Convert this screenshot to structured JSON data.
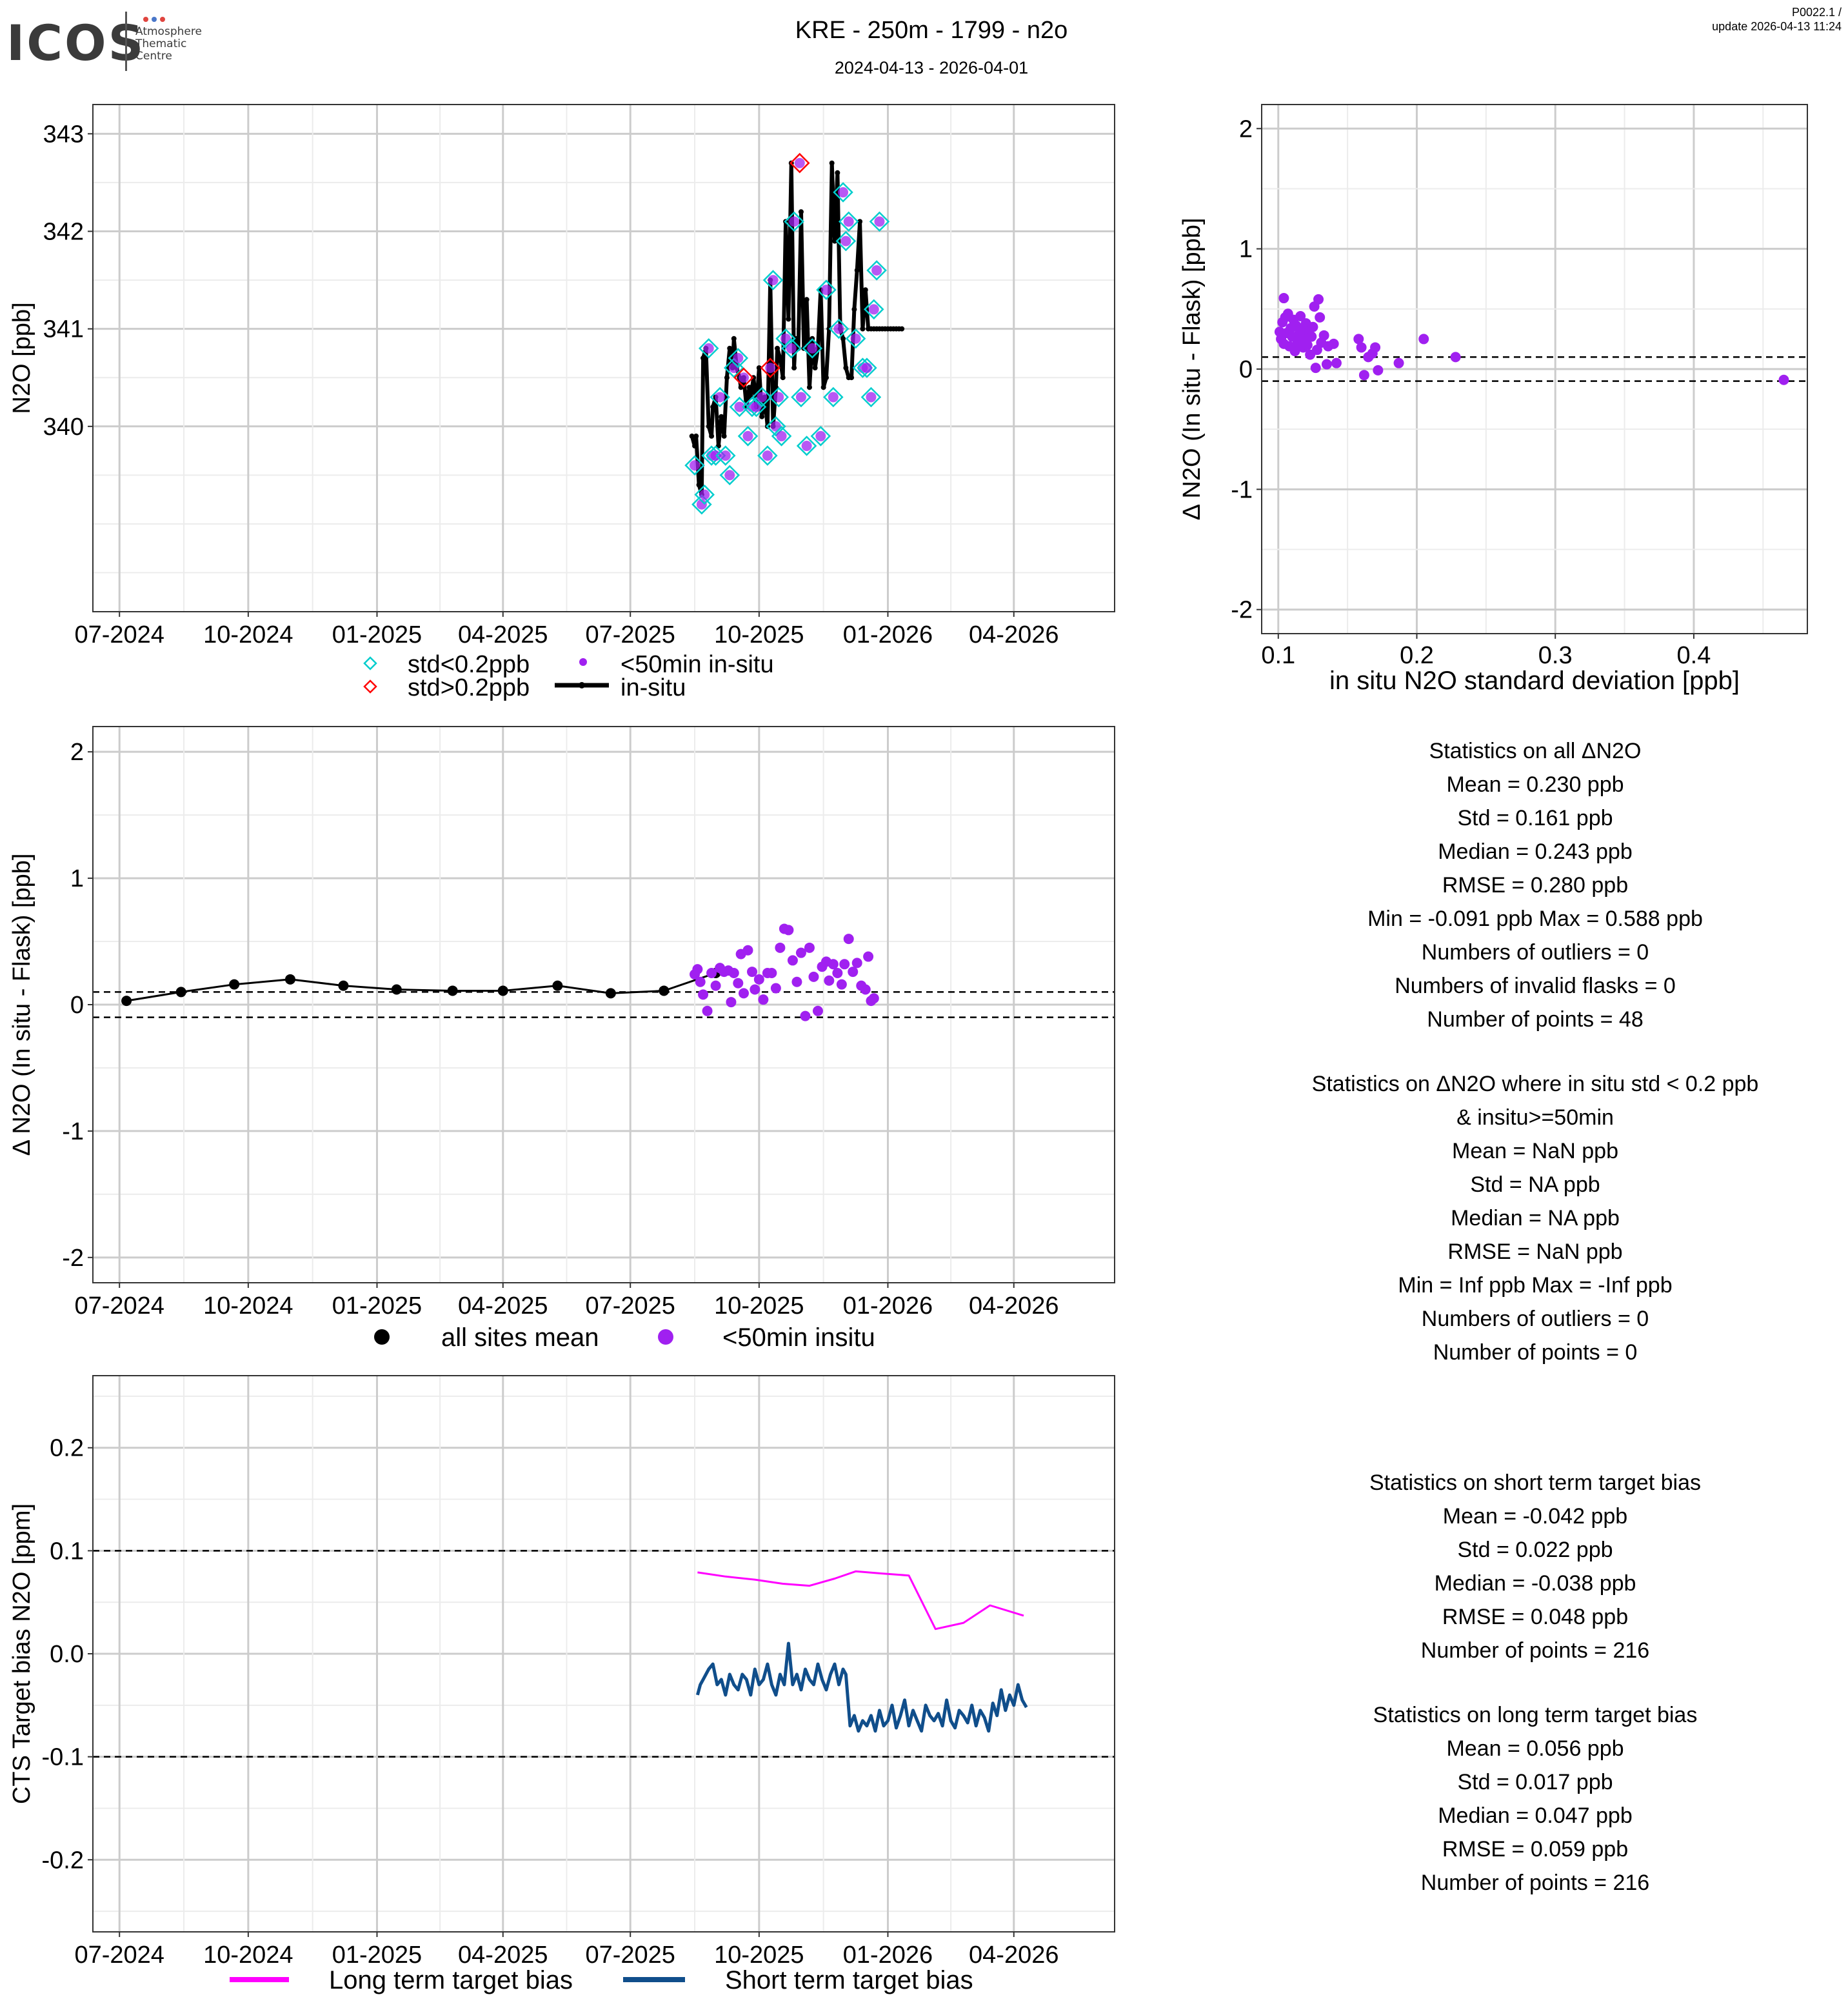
{
  "header": {
    "title": "KRE - 250m - 1799 - n2o",
    "subtitle": "2024-04-13 - 2026-04-01",
    "version": "P0022.1 /",
    "update": "update  2026-04-13 11:24",
    "logo_text": "ICOS",
    "logo_sub": [
      "Atmosphere",
      "Thematic",
      "Centre"
    ]
  },
  "colors": {
    "purple": "#a020f0",
    "cyan": "#00cdcd",
    "red": "#ff0000",
    "magenta": "#ff00ff",
    "navy": "#104e8b",
    "grid_major": "#cccccc",
    "grid_minor": "#ececec"
  },
  "chart_data": [
    {
      "id": "timeseries",
      "type": "line",
      "ylabel": "N2O [ppb]",
      "ylim": [
        338.1,
        343.3
      ],
      "yticks": [
        340,
        341,
        342,
        343
      ],
      "xlim": [
        60,
        790
      ],
      "xticks": [
        {
          "label": "07-2024",
          "x": 79
        },
        {
          "label": "10-2024",
          "x": 171
        },
        {
          "label": "01-2025",
          "x": 263
        },
        {
          "label": "04-2025",
          "x": 353
        },
        {
          "label": "07-2025",
          "x": 444
        },
        {
          "label": "10-2025",
          "x": 536
        },
        {
          "label": "01-2026",
          "x": 628
        },
        {
          "label": "04-2026",
          "x": 718
        }
      ],
      "insitu_line": {
        "x": [
          488,
          490,
          491,
          493,
          495,
          496,
          498,
          500,
          502,
          503,
          505,
          507,
          509,
          511,
          513,
          515,
          517,
          518,
          520,
          522,
          523,
          525,
          527,
          529,
          530,
          532,
          534,
          536,
          538,
          540,
          542,
          544,
          546,
          548,
          549,
          551,
          553,
          555,
          557,
          559,
          561,
          562,
          564,
          566,
          568,
          570,
          572,
          574,
          576,
          578,
          580,
          582,
          584,
          586,
          588,
          590,
          592,
          594,
          596,
          598,
          600,
          602,
          604,
          606,
          608,
          610,
          612,
          614,
          616,
          618,
          620,
          622,
          624,
          626,
          628,
          630,
          632,
          634,
          636,
          638
        ],
        "y": [
          339.9,
          339.8,
          339.9,
          339.4,
          339.3,
          340.7,
          340.8,
          340.0,
          339.9,
          340.2,
          340.3,
          339.8,
          340.1,
          339.9,
          340.5,
          340.8,
          340.6,
          340.9,
          340.6,
          340.5,
          340.4,
          340.5,
          340.2,
          340.4,
          340.3,
          340.5,
          340.2,
          340.6,
          340.1,
          340.3,
          340.0,
          341.5,
          340.0,
          340.4,
          340.8,
          340.7,
          340.5,
          342.1,
          341.1,
          342.7,
          340.6,
          340.9,
          340.8,
          342.2,
          340.8,
          341.3,
          340.4,
          340.9,
          340.6,
          340.8,
          341.4,
          340.4,
          340.5,
          341.0,
          342.7,
          341.9,
          342.6,
          341.0,
          340.9,
          340.6,
          340.5,
          340.5,
          341.2,
          341.6,
          342.1,
          341.0,
          341.4,
          341.0,
          341.0,
          341.0,
          341.0,
          341.0,
          341.0,
          341.0,
          341.0,
          341.0,
          341.0,
          341.0,
          341.0,
          341.0
        ]
      },
      "flask_points": [
        {
          "x": 490,
          "y": 339.6,
          "flag": "ok"
        },
        {
          "x": 495,
          "y": 339.2,
          "flag": "ok"
        },
        {
          "x": 497,
          "y": 339.3,
          "flag": "ok"
        },
        {
          "x": 500,
          "y": 340.8,
          "flag": "ok"
        },
        {
          "x": 502,
          "y": 339.7,
          "flag": "ok"
        },
        {
          "x": 505,
          "y": 339.7,
          "flag": "ok"
        },
        {
          "x": 508,
          "y": 340.3,
          "flag": "ok"
        },
        {
          "x": 512,
          "y": 339.7,
          "flag": "ok"
        },
        {
          "x": 515,
          "y": 339.5,
          "flag": "ok"
        },
        {
          "x": 518,
          "y": 340.6,
          "flag": "ok"
        },
        {
          "x": 521,
          "y": 340.7,
          "flag": "ok"
        },
        {
          "x": 522,
          "y": 340.2,
          "flag": "ok"
        },
        {
          "x": 525,
          "y": 340.5,
          "flag": "high"
        },
        {
          "x": 528,
          "y": 339.9,
          "flag": "ok"
        },
        {
          "x": 531,
          "y": 340.2,
          "flag": "ok"
        },
        {
          "x": 534,
          "y": 340.2,
          "flag": "ok"
        },
        {
          "x": 538,
          "y": 340.3,
          "flag": "ok"
        },
        {
          "x": 542,
          "y": 339.7,
          "flag": "ok"
        },
        {
          "x": 544,
          "y": 340.6,
          "flag": "high"
        },
        {
          "x": 546,
          "y": 341.5,
          "flag": "ok"
        },
        {
          "x": 548,
          "y": 340.0,
          "flag": "ok"
        },
        {
          "x": 550,
          "y": 340.3,
          "flag": "ok"
        },
        {
          "x": 552,
          "y": 339.9,
          "flag": "ok"
        },
        {
          "x": 555,
          "y": 340.9,
          "flag": "ok"
        },
        {
          "x": 559,
          "y": 340.8,
          "flag": "ok"
        },
        {
          "x": 561,
          "y": 342.1,
          "flag": "ok"
        },
        {
          "x": 565,
          "y": 342.7,
          "flag": "high"
        },
        {
          "x": 566,
          "y": 340.3,
          "flag": "ok"
        },
        {
          "x": 570,
          "y": 339.8,
          "flag": "ok"
        },
        {
          "x": 574,
          "y": 340.8,
          "flag": "ok"
        },
        {
          "x": 580,
          "y": 339.9,
          "flag": "ok"
        },
        {
          "x": 584,
          "y": 341.4,
          "flag": "ok"
        },
        {
          "x": 589,
          "y": 340.3,
          "flag": "ok"
        },
        {
          "x": 593,
          "y": 341.0,
          "flag": "ok"
        },
        {
          "x": 596,
          "y": 342.4,
          "flag": "ok"
        },
        {
          "x": 598,
          "y": 341.9,
          "flag": "ok"
        },
        {
          "x": 600,
          "y": 342.1,
          "flag": "ok"
        },
        {
          "x": 605,
          "y": 340.9,
          "flag": "ok"
        },
        {
          "x": 610,
          "y": 340.6,
          "flag": "ok"
        },
        {
          "x": 613,
          "y": 340.6,
          "flag": "ok"
        },
        {
          "x": 616,
          "y": 340.3,
          "flag": "ok"
        },
        {
          "x": 618,
          "y": 341.2,
          "flag": "ok"
        },
        {
          "x": 620,
          "y": 341.6,
          "flag": "ok"
        },
        {
          "x": 622,
          "y": 342.1,
          "flag": "ok"
        }
      ],
      "legend": {
        "ok": "std<0.2ppb",
        "high": "std>0.2ppb",
        "short": "<50min in-situ",
        "line": "in-situ"
      }
    },
    {
      "id": "scatter_std",
      "type": "scatter",
      "ylabel": "Δ N2O (In situ - Flask) [ppb]",
      "xlabel": "in situ N2O standard deviation [ppb]",
      "xlim": [
        0.088,
        0.482
      ],
      "ylim": [
        -2.2,
        2.2
      ],
      "xticks": [
        0.1,
        0.2,
        0.3,
        0.4
      ],
      "yticks": [
        -2,
        -1,
        0,
        1,
        2
      ],
      "hlines": [
        0.1,
        -0.1
      ],
      "points": [
        [
          0.101,
          0.31
        ],
        [
          0.102,
          0.25
        ],
        [
          0.103,
          0.39
        ],
        [
          0.104,
          0.21
        ],
        [
          0.105,
          0.43
        ],
        [
          0.106,
          0.3
        ],
        [
          0.107,
          0.46
        ],
        [
          0.108,
          0.19
        ],
        [
          0.109,
          0.34
        ],
        [
          0.11,
          0.27
        ],
        [
          0.111,
          0.41
        ],
        [
          0.112,
          0.15
        ],
        [
          0.113,
          0.36
        ],
        [
          0.114,
          0.22
        ],
        [
          0.115,
          0.29
        ],
        [
          0.116,
          0.44
        ],
        [
          0.117,
          0.33
        ],
        [
          0.118,
          0.18
        ],
        [
          0.119,
          0.26
        ],
        [
          0.12,
          0.38
        ],
        [
          0.121,
          0.2
        ],
        [
          0.122,
          0.31
        ],
        [
          0.123,
          0.12
        ],
        [
          0.124,
          0.27
        ],
        [
          0.125,
          0.35
        ],
        [
          0.126,
          0.52
        ],
        [
          0.127,
          0.01
        ],
        [
          0.128,
          0.16
        ],
        [
          0.129,
          0.58
        ],
        [
          0.13,
          0.43
        ],
        [
          0.131,
          0.22
        ],
        [
          0.133,
          0.28
        ],
        [
          0.135,
          0.04
        ],
        [
          0.136,
          0.19
        ],
        [
          0.14,
          0.21
        ],
        [
          0.142,
          0.05
        ],
        [
          0.158,
          0.25
        ],
        [
          0.16,
          0.18
        ],
        [
          0.162,
          -0.05
        ],
        [
          0.165,
          0.1
        ],
        [
          0.168,
          0.13
        ],
        [
          0.17,
          0.18
        ],
        [
          0.172,
          -0.01
        ],
        [
          0.187,
          0.05
        ],
        [
          0.205,
          0.25
        ],
        [
          0.228,
          0.1
        ],
        [
          0.465,
          -0.09
        ],
        [
          0.104,
          0.59
        ]
      ]
    },
    {
      "id": "delta_timeseries",
      "type": "scatter",
      "ylabel": "Δ N2O (In situ - Flask) [ppb]",
      "ylim": [
        -2.2,
        2.2
      ],
      "yticks": [
        -2,
        -1,
        0,
        1,
        2
      ],
      "xlim": [
        60,
        790
      ],
      "hlines": [
        0.1,
        -0.1
      ],
      "sites_mean": {
        "x": [
          84,
          123,
          161,
          201,
          239,
          277,
          317,
          353,
          392,
          430,
          468
        ],
        "y": [
          0.03,
          0.1,
          0.16,
          0.2,
          0.15,
          0.12,
          0.11,
          0.11,
          0.15,
          0.09,
          0.11
        ]
      },
      "sites_mean_last": {
        "x": 505,
        "y": 0.25
      },
      "insitu_points": [
        [
          490,
          0.24
        ],
        [
          492,
          0.28
        ],
        [
          494,
          0.18
        ],
        [
          496,
          0.08
        ],
        [
          499,
          -0.05
        ],
        [
          502,
          0.25
        ],
        [
          505,
          0.15
        ],
        [
          508,
          0.29
        ],
        [
          511,
          0.26
        ],
        [
          514,
          0.27
        ],
        [
          516,
          0.02
        ],
        [
          518,
          0.25
        ],
        [
          521,
          0.17
        ],
        [
          523,
          0.4
        ],
        [
          525,
          0.09
        ],
        [
          528,
          0.43
        ],
        [
          531,
          0.26
        ],
        [
          533,
          0.12
        ],
        [
          536,
          0.2
        ],
        [
          539,
          0.04
        ],
        [
          542,
          0.25
        ],
        [
          545,
          0.25
        ],
        [
          548,
          0.13
        ],
        [
          551,
          0.45
        ],
        [
          554,
          0.6
        ],
        [
          557,
          0.59
        ],
        [
          560,
          0.35
        ],
        [
          563,
          0.18
        ],
        [
          566,
          0.41
        ],
        [
          569,
          -0.09
        ],
        [
          572,
          0.45
        ],
        [
          575,
          0.22
        ],
        [
          578,
          -0.05
        ],
        [
          581,
          0.3
        ],
        [
          584,
          0.34
        ],
        [
          586,
          0.19
        ],
        [
          589,
          0.32
        ],
        [
          592,
          0.25
        ],
        [
          595,
          0.16
        ],
        [
          597,
          0.32
        ],
        [
          600,
          0.52
        ],
        [
          603,
          0.26
        ],
        [
          606,
          0.33
        ],
        [
          609,
          0.15
        ],
        [
          612,
          0.12
        ],
        [
          614,
          0.38
        ],
        [
          616,
          0.03
        ],
        [
          618,
          0.05
        ]
      ],
      "legend": {
        "mean": "all sites mean",
        "insitu": "<50min insitu"
      }
    },
    {
      "id": "target_bias",
      "type": "line",
      "ylabel": "CTS Target bias N2O [ppm]",
      "ylim": [
        -0.27,
        0.27
      ],
      "yticks": [
        -0.2,
        -0.1,
        0.0,
        0.1,
        0.2
      ],
      "ytick_labels": [
        "-0.2",
        "-0.1",
        "0.0",
        "0.1",
        "0.2"
      ],
      "xlim": [
        60,
        790
      ],
      "hlines": [
        0.1,
        -0.1
      ],
      "series": [
        {
          "name": "Long term target bias",
          "x": [
            492,
            512,
            533,
            553,
            572,
            590,
            605,
            623,
            643,
            662,
            682,
            701,
            725
          ],
          "y": [
            0.079,
            0.075,
            0.072,
            0.068,
            0.066,
            0.073,
            0.08,
            0.078,
            0.076,
            0.024,
            0.03,
            0.047,
            0.037
          ]
        },
        {
          "name": "Short term target bias",
          "x": [
            492,
            494,
            496,
            498,
            500,
            503,
            506,
            509,
            512,
            515,
            518,
            521,
            524,
            527,
            530,
            533,
            536,
            539,
            542,
            545,
            548,
            551,
            554,
            557,
            560,
            563,
            566,
            569,
            572,
            575,
            578,
            581,
            584,
            587,
            590,
            593,
            596,
            598,
            601,
            604,
            607,
            610,
            613,
            616,
            619,
            622,
            625,
            628,
            631,
            634,
            637,
            640,
            643,
            646,
            649,
            652,
            655,
            658,
            661,
            664,
            667,
            670,
            673,
            676,
            679,
            682,
            685,
            688,
            691,
            694,
            697,
            700,
            703,
            706,
            709,
            712,
            715,
            718,
            721,
            724,
            727
          ],
          "y": [
            -0.04,
            -0.03,
            -0.025,
            -0.02,
            -0.015,
            -0.01,
            -0.03,
            -0.025,
            -0.04,
            -0.02,
            -0.03,
            -0.035,
            -0.02,
            -0.025,
            -0.04,
            -0.015,
            -0.03,
            -0.025,
            -0.01,
            -0.03,
            -0.04,
            -0.02,
            -0.03,
            0.01,
            -0.03,
            -0.02,
            -0.035,
            -0.015,
            -0.025,
            -0.03,
            -0.01,
            -0.025,
            -0.035,
            -0.02,
            -0.01,
            -0.03,
            -0.015,
            -0.02,
            -0.07,
            -0.06,
            -0.075,
            -0.065,
            -0.07,
            -0.06,
            -0.075,
            -0.055,
            -0.07,
            -0.065,
            -0.05,
            -0.072,
            -0.06,
            -0.045,
            -0.07,
            -0.055,
            -0.065,
            -0.075,
            -0.05,
            -0.06,
            -0.065,
            -0.058,
            -0.07,
            -0.045,
            -0.065,
            -0.072,
            -0.055,
            -0.06,
            -0.067,
            -0.05,
            -0.07,
            -0.055,
            -0.062,
            -0.075,
            -0.048,
            -0.06,
            -0.035,
            -0.055,
            -0.04,
            -0.05,
            -0.03,
            -0.045,
            -0.052
          ]
        }
      ],
      "legend": {
        "long": "Long term target bias",
        "short": "Short term target bias"
      }
    }
  ],
  "stats_all": [
    "Statistics on all ΔN2O",
    "Mean =  0.230 ppb",
    "Std =  0.161 ppb",
    "Median =  0.243 ppb",
    "RMSE =  0.280 ppb",
    "Min =  -0.091 ppb Max =  0.588 ppb",
    "Numbers of outliers =  0",
    "Numbers of invalid flasks =  0",
    "Number of points =  48"
  ],
  "stats_filtered": [
    "Statistics on ΔN2O where in situ std < 0.2 ppb",
    "& insitu>=50min",
    "Mean =  NaN ppb",
    "Std =  NA ppb",
    "Median =  NA ppb",
    "RMSE =  NaN ppb",
    "Min =  Inf ppb Max =  -Inf ppb",
    "Numbers of outliers =  0",
    "Number of points =  0"
  ],
  "stats_short": [
    "Statistics on short term target bias",
    "Mean =  -0.042 ppb",
    "Std =  0.022 ppb",
    "Median =  -0.038 ppb",
    "RMSE =  0.048 ppb",
    "Number of points =  216"
  ],
  "stats_long": [
    "Statistics on long term target bias",
    "Mean =  0.056 ppb",
    "Std =  0.017 ppb",
    "Median =  0.047 ppb",
    "RMSE =  0.059 ppb",
    "Number of points =  216"
  ]
}
